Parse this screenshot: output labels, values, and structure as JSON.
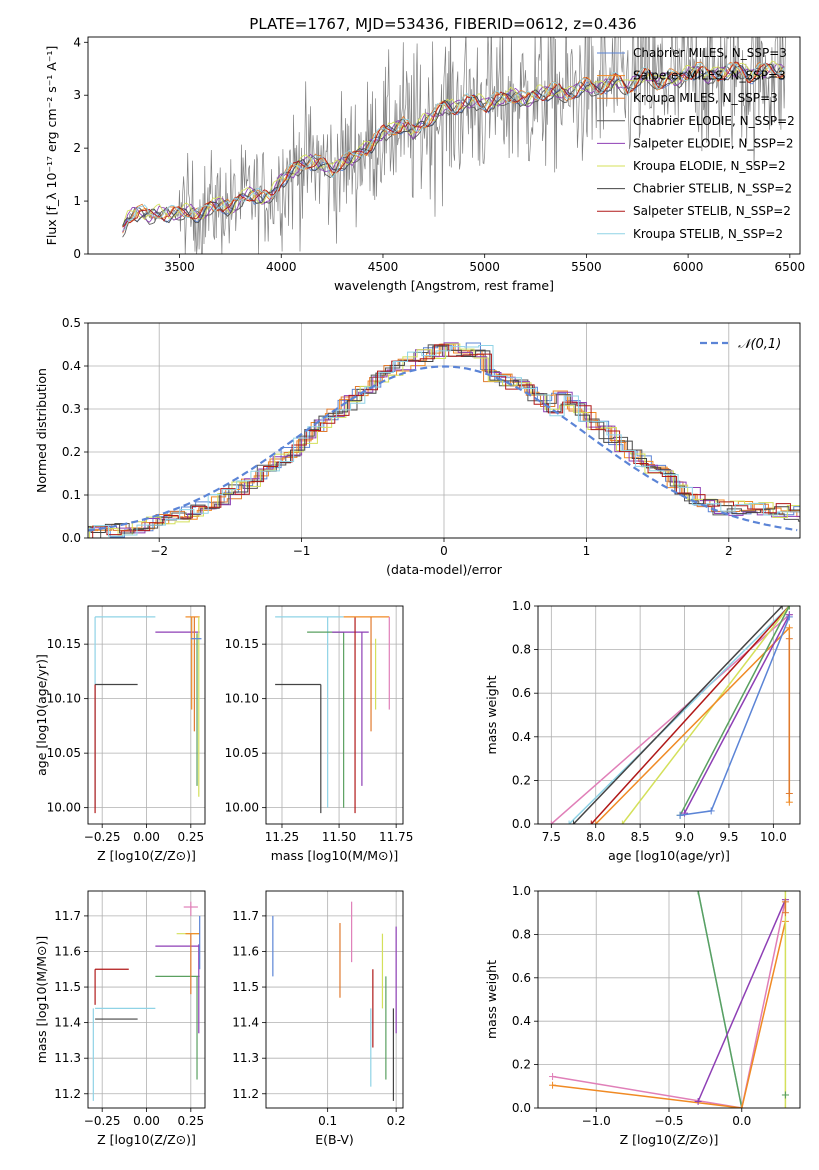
{
  "figure": {
    "title": "PLATE=1767, MJD=53436, FIBERID=0612, z=0.436"
  },
  "colors": {
    "chabrier_miles": "#5b84d6",
    "salpeter_miles": "#f08a24",
    "kroupa_miles": "#e07a2e",
    "chabrier_elodie": "#555555",
    "salpeter_elodie": "#8e3fb5",
    "kroupa_elodie": "#d4e05a",
    "chabrier_stelib": "#444444",
    "salpeter_stelib": "#b01818",
    "kroupa_stelib": "#8fd3e6",
    "gaussian": "#5b84d6",
    "pink": "#e07fb8",
    "green": "#5aa060",
    "data": "#808080"
  },
  "chart_data": [
    {
      "id": "spectrum",
      "type": "line",
      "xlabel": "wavelength [Angstrom, rest frame]",
      "ylabel": "Flux [f_λ 10⁻¹⁷ erg cm⁻² s⁻¹ A⁻¹]",
      "xlim": [
        3050,
        6550
      ],
      "ylim": [
        0,
        4.1
      ],
      "xticks": [
        3500,
        4000,
        4500,
        5000,
        5500,
        6000,
        6500
      ],
      "yticks": [
        0,
        1,
        2,
        3,
        4
      ],
      "legend_position": "right",
      "grid": false,
      "legend": [
        "Chabrier MILES, N_SSP=3",
        "Salpeter MILES, N_SSP=3",
        "Kroupa MILES, N_SSP=3",
        "Chabrier ELODIE, N_SSP=2",
        "Salpeter ELODIE, N_SSP=2",
        "Kroupa ELODIE, N_SSP=2",
        "Chabrier STELIB, N_SSP=2",
        "Salpeter STELIB, N_SSP=2",
        "Kroupa STELIB, N_SSP=2"
      ],
      "model_x": [
        3220,
        3250,
        3300,
        3350,
        3400,
        3450,
        3500,
        3550,
        3600,
        3650,
        3700,
        3750,
        3800,
        3850,
        3900,
        3950,
        4000,
        4050,
        4100,
        4150,
        4200,
        4250,
        4300,
        4350,
        4400,
        4450,
        4500,
        4550,
        4600,
        4650,
        4700,
        4750,
        4800,
        4850,
        4900,
        4950,
        5000,
        5050,
        5100,
        5150,
        5200,
        5250,
        5300,
        5350,
        5400,
        5450,
        5500,
        5550,
        5600,
        5650,
        5700,
        5750,
        5800,
        5850,
        5900,
        5950,
        6000,
        6050,
        6100,
        6150,
        6200,
        6250,
        6300,
        6350,
        6400,
        6450
      ],
      "model_y": [
        0.45,
        0.7,
        0.8,
        0.72,
        0.78,
        0.76,
        0.78,
        0.8,
        0.72,
        0.9,
        0.95,
        0.85,
        1.05,
        1.15,
        1.05,
        1.1,
        1.4,
        1.55,
        1.7,
        1.75,
        1.7,
        1.55,
        1.75,
        1.8,
        1.95,
        2.1,
        2.3,
        2.35,
        2.45,
        2.3,
        2.5,
        2.6,
        2.8,
        2.75,
        2.85,
        2.9,
        2.8,
        2.9,
        2.95,
        3.0,
        2.9,
        3.0,
        3.05,
        3.1,
        3.0,
        3.1,
        3.2,
        3.1,
        3.2,
        3.3,
        3.1,
        3.3,
        3.4,
        3.2,
        3.35,
        3.3,
        3.4,
        3.5,
        3.35,
        3.4,
        3.45,
        3.5,
        3.35,
        3.45,
        3.5,
        3.45
      ]
    },
    {
      "id": "residuals",
      "type": "line",
      "xlabel": "(data-model)/error",
      "ylabel": "Normed distribution",
      "xlim": [
        -2.5,
        2.5
      ],
      "ylim": [
        0,
        0.5
      ],
      "xticks": [
        -2,
        -1,
        0,
        1,
        2
      ],
      "yticks": [
        0.0,
        0.1,
        0.2,
        0.3,
        0.4,
        0.5
      ],
      "grid": true,
      "legend_position": "upper right",
      "legend": [
        "𝒩(0,1)"
      ]
    },
    {
      "id": "age_vs_Z",
      "type": "scatter",
      "xlabel": "Z [log10(Z/Z⊙)]",
      "ylabel": "age  [log10(age/yr)]",
      "xlim": [
        -0.33,
        0.33
      ],
      "ylim": [
        9.985,
        10.185
      ],
      "xticks": [
        -0.25,
        0.0,
        0.25
      ],
      "yticks": [
        10.0,
        10.05,
        10.1,
        10.15
      ],
      "grid": true
    },
    {
      "id": "age_vs_mass",
      "type": "scatter",
      "xlabel": "mass [log10(M/M⊙)]",
      "xlim": [
        11.18,
        11.78
      ],
      "ylim": [
        9.985,
        10.185
      ],
      "xticks": [
        11.25,
        11.5,
        11.75
      ],
      "yticks": [
        10.0,
        10.05,
        10.1,
        10.15
      ],
      "grid": true
    },
    {
      "id": "massweight_vs_age",
      "type": "line",
      "xlabel": "age  [log10(age/yr)]",
      "ylabel": "mass weight",
      "xlim": [
        7.35,
        10.3
      ],
      "ylim": [
        0,
        1
      ],
      "xticks": [
        7.5,
        8.0,
        8.5,
        9.0,
        9.5,
        10.0
      ],
      "yticks": [
        0.0,
        0.2,
        0.4,
        0.6,
        0.8,
        1.0
      ],
      "grid": true
    },
    {
      "id": "mass_vs_Z",
      "type": "scatter",
      "xlabel": "Z [log10(Z/Z⊙)]",
      "ylabel": "mass [log10(M/M⊙)]",
      "xlim": [
        -0.33,
        0.33
      ],
      "ylim": [
        11.16,
        11.77
      ],
      "xticks": [
        -0.25,
        0.0,
        0.25
      ],
      "yticks": [
        11.2,
        11.3,
        11.4,
        11.5,
        11.6,
        11.7
      ],
      "grid": true
    },
    {
      "id": "mass_vs_ebv",
      "type": "scatter",
      "xlabel": "E(B-V)",
      "xlim": [
        0.01,
        0.21
      ],
      "ylim": [
        11.16,
        11.77
      ],
      "xticks": [
        0.1,
        0.2
      ],
      "yticks": [
        11.2,
        11.3,
        11.4,
        11.5,
        11.6,
        11.7
      ],
      "grid": true
    },
    {
      "id": "massweight_vs_Z",
      "type": "line",
      "xlabel": "Z [log10(Z/Z⊙)]",
      "ylabel": "mass weight",
      "xlim": [
        -1.4,
        0.4
      ],
      "ylim": [
        0,
        1
      ],
      "xticks": [
        -1.0,
        -0.5,
        0.0
      ],
      "yticks": [
        0.0,
        0.2,
        0.4,
        0.6,
        0.8,
        1.0
      ],
      "grid": true
    }
  ]
}
